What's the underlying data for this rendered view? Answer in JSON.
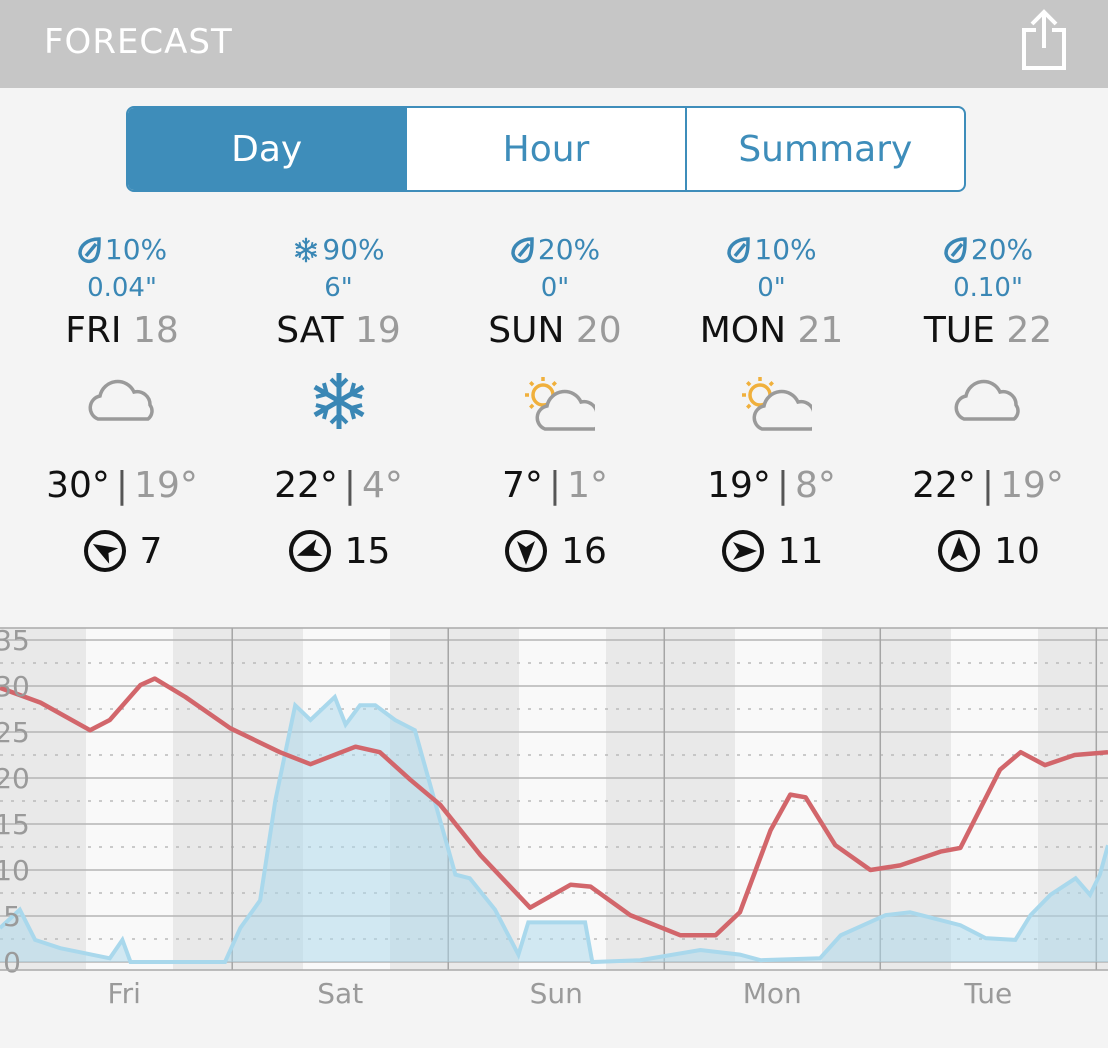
{
  "header": {
    "title": "FORECAST"
  },
  "tabs": {
    "items": [
      "Day",
      "Hour",
      "Summary"
    ],
    "active": 0
  },
  "days": [
    {
      "precip_icon": "drop",
      "precip_chance": "10%",
      "precip_amount": "0.04\"",
      "name": "FRI",
      "date": "18",
      "icon": "cloud",
      "high": "30°",
      "separator": "|",
      "low": "19°",
      "wind_arrow_deg": 300,
      "wind": "7"
    },
    {
      "precip_icon": "snow",
      "precip_chance": "90%",
      "precip_amount": "6\"",
      "name": "SAT",
      "date": "19",
      "icon": "snow",
      "high": "22°",
      "separator": "|",
      "low": "4°",
      "wind_arrow_deg": 250,
      "wind": "15"
    },
    {
      "precip_icon": "drop",
      "precip_chance": "20%",
      "precip_amount": "0\"",
      "name": "SUN",
      "date": "20",
      "icon": "partly-sunny",
      "high": "7°",
      "separator": "|",
      "low": "1°",
      "wind_arrow_deg": 180,
      "wind": "16"
    },
    {
      "precip_icon": "drop",
      "precip_chance": "10%",
      "precip_amount": "0\"",
      "name": "MON",
      "date": "21",
      "icon": "partly-sunny",
      "high": "19°",
      "separator": "|",
      "low": "8°",
      "wind_arrow_deg": 90,
      "wind": "11"
    },
    {
      "precip_icon": "drop",
      "precip_chance": "20%",
      "precip_amount": "0.10\"",
      "name": "TUE",
      "date": "22",
      "icon": "cloud",
      "high": "22°",
      "separator": "|",
      "low": "19°",
      "wind_arrow_deg": 0,
      "wind": "10"
    }
  ],
  "chart_data": {
    "type": "line",
    "xlim": [
      -1.8,
      121.3
    ],
    "xticks": [
      {
        "value": 12,
        "label": "Fri"
      },
      {
        "value": 36,
        "label": "Sat"
      },
      {
        "value": 60,
        "label": "Sun"
      },
      {
        "value": 84,
        "label": "Mon"
      },
      {
        "value": 108,
        "label": "Tue"
      }
    ],
    "xgrid": [
      24,
      48,
      72,
      96,
      120
    ],
    "ylim": [
      0,
      35
    ],
    "yticks": [
      0,
      5,
      10,
      15,
      20,
      25,
      30,
      35
    ],
    "grid": true,
    "series": [
      {
        "kind": "area",
        "color": "#a9d8ec",
        "x": [
          -1.8,
          0.4,
          2.1,
          4.9,
          10.4,
          11.8,
          12.7,
          14.9,
          23.2,
          24.9,
          27.1,
          28.8,
          31.0,
          32.7,
          35.4,
          36.6,
          38.2,
          39.9,
          42.1,
          44.3,
          47.1,
          48.8,
          50.4,
          53.2,
          55.8,
          56.9,
          63.2,
          64.0,
          69.3,
          76.0,
          80.4,
          82.7,
          89.3,
          91.6,
          96.6,
          99.3,
          104.9,
          107.7,
          111.0,
          112.7,
          114.9,
          117.7,
          119.3,
          120.4,
          121.3
        ],
        "values": [
          3.7,
          5.7,
          2.4,
          1.5,
          0.4,
          2.4,
          0,
          0,
          0,
          3.7,
          6.7,
          17.6,
          27.9,
          26.3,
          28.8,
          25.8,
          27.9,
          27.9,
          26.3,
          25.2,
          15.4,
          9.5,
          9.1,
          5.7,
          0.8,
          4.3,
          4.3,
          0,
          0.2,
          1.3,
          0.8,
          0.2,
          0.4,
          2.9,
          5.1,
          5.4,
          4.0,
          2.6,
          2.4,
          5.1,
          7.3,
          9.1,
          7.3,
          9.5,
          12.7
        ]
      },
      {
        "kind": "line",
        "color": "#d2666b",
        "x": [
          -1.8,
          2.7,
          8.2,
          10.4,
          13.8,
          15.4,
          18.8,
          23.8,
          29.3,
          32.7,
          37.7,
          40.4,
          43.8,
          47.1,
          51.6,
          57.1,
          61.6,
          63.8,
          68.2,
          73.8,
          77.7,
          80.4,
          83.8,
          86.0,
          87.7,
          91.0,
          94.9,
          98.2,
          102.7,
          104.9,
          109.3,
          111.6,
          114.3,
          117.6,
          121.3
        ],
        "values": [
          29.8,
          28.2,
          25.2,
          26.3,
          30.1,
          30.8,
          28.8,
          25.4,
          22.8,
          21.5,
          23.4,
          22.8,
          19.8,
          17.1,
          11.6,
          5.9,
          8.4,
          8.2,
          5.1,
          2.9,
          2.9,
          5.4,
          14.3,
          18.2,
          17.9,
          12.7,
          10.0,
          10.5,
          12.0,
          12.4,
          20.9,
          22.8,
          21.4,
          22.5,
          22.8
        ]
      }
    ]
  }
}
